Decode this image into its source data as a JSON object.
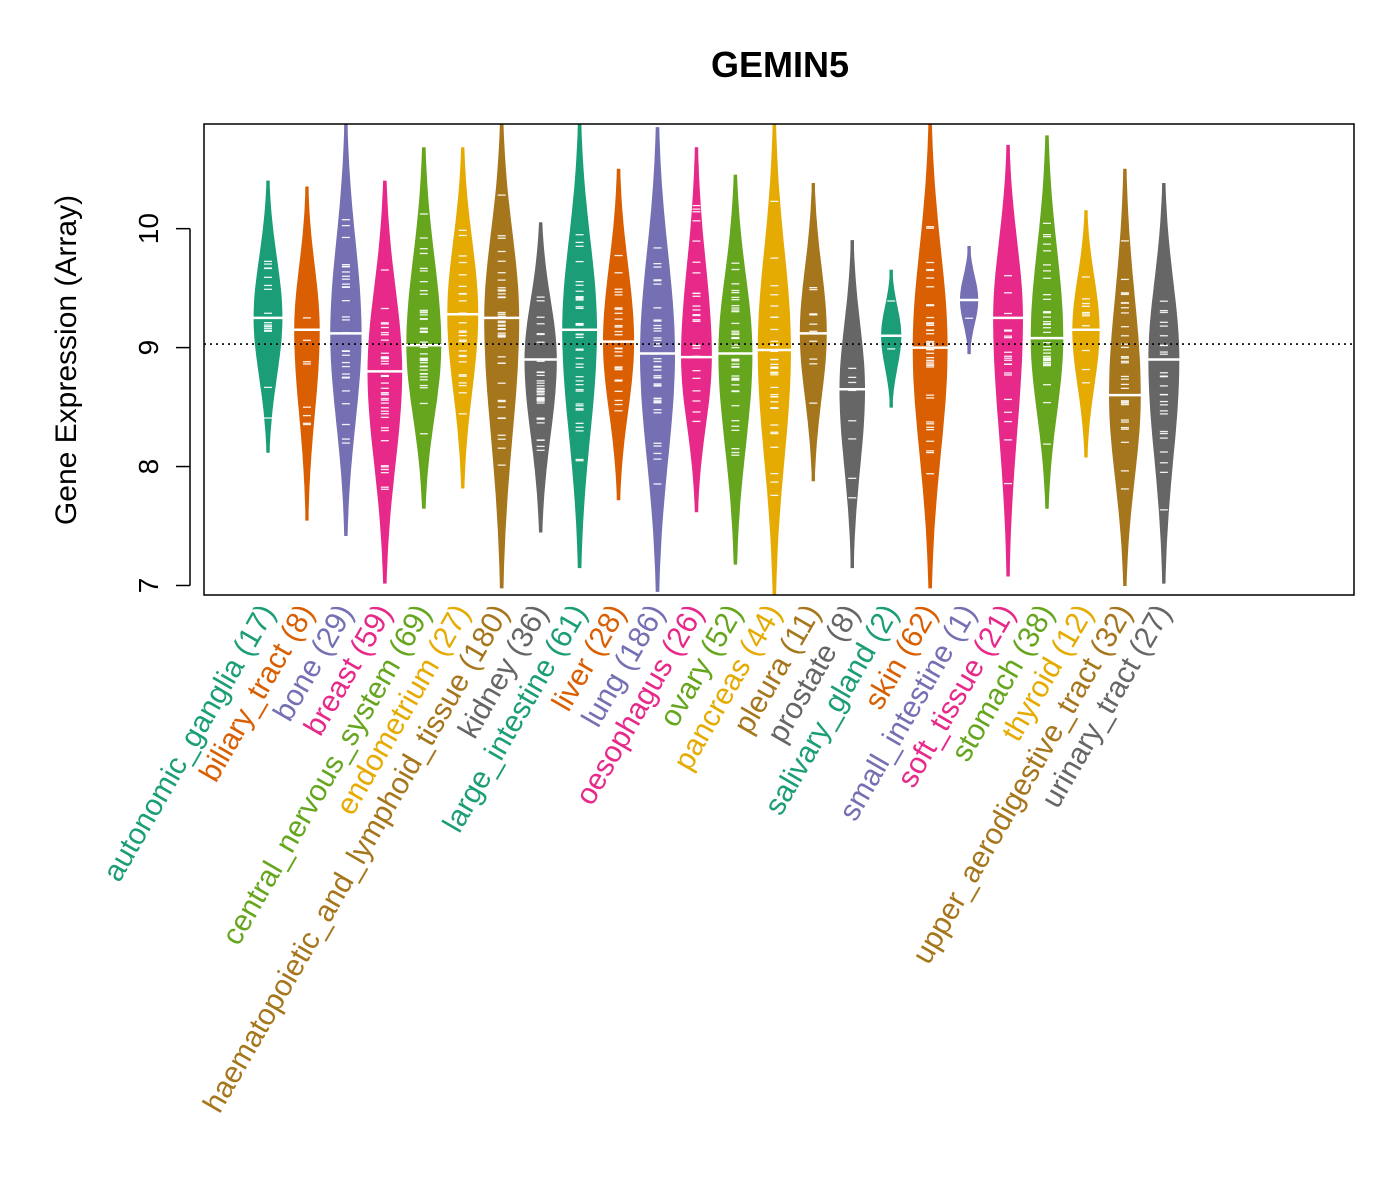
{
  "chart_data": {
    "type": "beanplot",
    "title": "GEMIN5",
    "xlabel": "",
    "ylabel": "Gene Expression (Array)",
    "ylim": [
      6.92,
      10.88
    ],
    "yticks": [
      7,
      8,
      9,
      10
    ],
    "reference_line": 9.03,
    "palette": [
      "#1B9E77",
      "#D95F02",
      "#7570B3",
      "#E7298A",
      "#66A61E",
      "#E6AB02",
      "#A6761D",
      "#666666"
    ],
    "categories": [
      {
        "name": "autonomic_ganglia",
        "n": 17,
        "label": "autonomic_ganglia (17)",
        "min": 8.12,
        "max": 10.4,
        "median": 9.25,
        "color": "#1B9E77"
      },
      {
        "name": "biliary_tract",
        "n": 8,
        "label": "biliary_tract (8)",
        "min": 7.55,
        "max": 10.35,
        "median": 9.15,
        "color": "#D95F02"
      },
      {
        "name": "bone",
        "n": 29,
        "label": "bone (29)",
        "min": 7.42,
        "max": 10.88,
        "median": 9.12,
        "color": "#7570B3"
      },
      {
        "name": "breast",
        "n": 59,
        "label": "breast (59)",
        "min": 7.02,
        "max": 10.4,
        "median": 8.8,
        "color": "#E7298A"
      },
      {
        "name": "central_nervous_system",
        "n": 69,
        "label": "central_nervous_system (69)",
        "min": 7.65,
        "max": 10.68,
        "median": 9.02,
        "color": "#66A61E"
      },
      {
        "name": "endometrium",
        "n": 27,
        "label": "endometrium (27)",
        "min": 7.82,
        "max": 10.68,
        "median": 9.28,
        "color": "#E6AB02"
      },
      {
        "name": "haematopoietic_and_lymphoid_tissue",
        "n": 180,
        "label": "haematopoietic_and_lymphoid_tissue (180)",
        "min": 6.98,
        "max": 10.88,
        "median": 9.25,
        "color": "#A6761D"
      },
      {
        "name": "kidney",
        "n": 36,
        "label": "kidney (36)",
        "min": 7.45,
        "max": 10.05,
        "median": 8.9,
        "color": "#666666"
      },
      {
        "name": "large_intestine",
        "n": 61,
        "label": "large_intestine (61)",
        "min": 7.15,
        "max": 10.88,
        "median": 9.15,
        "color": "#1B9E77"
      },
      {
        "name": "liver",
        "n": 28,
        "label": "liver (28)",
        "min": 7.72,
        "max": 10.5,
        "median": 9.05,
        "color": "#D95F02"
      },
      {
        "name": "lung",
        "n": 186,
        "label": "lung (186)",
        "min": 6.95,
        "max": 10.85,
        "median": 8.95,
        "color": "#7570B3"
      },
      {
        "name": "oesophagus",
        "n": 26,
        "label": "oesophagus (26)",
        "min": 7.62,
        "max": 10.68,
        "median": 8.92,
        "color": "#E7298A"
      },
      {
        "name": "ovary",
        "n": 52,
        "label": "ovary (52)",
        "min": 7.18,
        "max": 10.45,
        "median": 8.95,
        "color": "#66A61E"
      },
      {
        "name": "pancreas",
        "n": 44,
        "label": "pancreas (44)",
        "min": 6.92,
        "max": 10.88,
        "median": 8.98,
        "color": "#E6AB02"
      },
      {
        "name": "pleura",
        "n": 11,
        "label": "pleura (11)",
        "min": 7.88,
        "max": 10.38,
        "median": 9.12,
        "color": "#A6761D"
      },
      {
        "name": "prostate",
        "n": 8,
        "label": "prostate (8)",
        "min": 7.15,
        "max": 9.9,
        "median": 8.65,
        "color": "#666666"
      },
      {
        "name": "salivary_gland",
        "n": 2,
        "label": "salivary_gland (2)",
        "min": 8.5,
        "max": 9.65,
        "median": 9.1,
        "color": "#1B9E77"
      },
      {
        "name": "skin",
        "n": 62,
        "label": "skin (62)",
        "min": 6.98,
        "max": 10.88,
        "median": 9.0,
        "color": "#D95F02"
      },
      {
        "name": "small_intestine",
        "n": 1,
        "label": "small_intestine (1)",
        "min": 8.95,
        "max": 9.85,
        "median": 9.4,
        "color": "#7570B3"
      },
      {
        "name": "soft_tissue",
        "n": 21,
        "label": "soft_tissue (21)",
        "min": 7.08,
        "max": 10.7,
        "median": 9.25,
        "color": "#E7298A"
      },
      {
        "name": "stomach",
        "n": 38,
        "label": "stomach (38)",
        "min": 7.65,
        "max": 10.78,
        "median": 9.08,
        "color": "#66A61E"
      },
      {
        "name": "thyroid",
        "n": 12,
        "label": "thyroid (12)",
        "min": 8.08,
        "max": 10.15,
        "median": 9.15,
        "color": "#E6AB02"
      },
      {
        "name": "upper_aerodigestive_tract",
        "n": 32,
        "label": "upper_aerodigestive_tract (32)",
        "min": 7.0,
        "max": 10.5,
        "median": 8.6,
        "color": "#A6761D"
      },
      {
        "name": "urinary_tract",
        "n": 27,
        "label": "urinary_tract (27)",
        "min": 7.02,
        "max": 10.38,
        "median": 8.9,
        "color": "#666666"
      }
    ]
  }
}
